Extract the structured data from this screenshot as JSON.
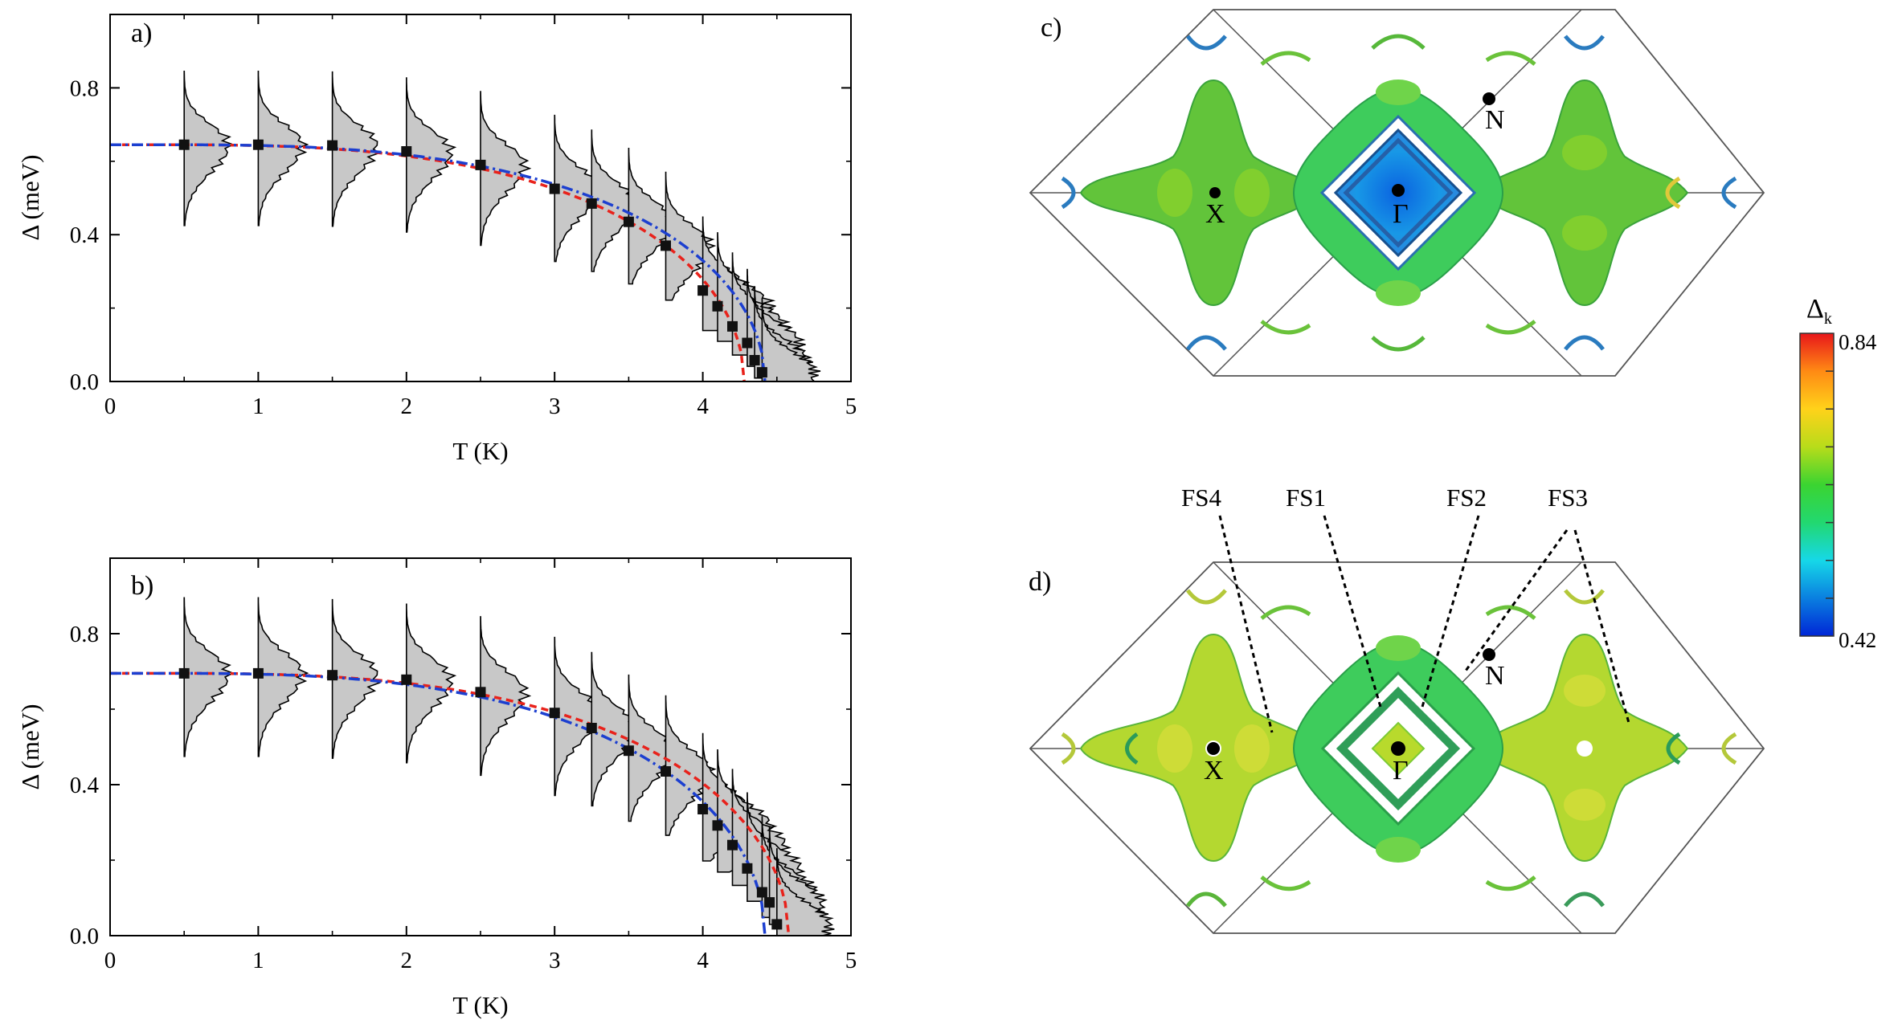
{
  "chart_data": [
    {
      "type": "scatter",
      "panel": "a)",
      "xlabel": "T (K)",
      "ylabel": "Δ (meV)",
      "xlim": [
        0,
        5
      ],
      "ylim": [
        0,
        1.0
      ],
      "xticks": [
        "0",
        "1",
        "2",
        "3",
        "4",
        "5"
      ],
      "yticks": [
        "0.0",
        "0.4",
        "0.8"
      ],
      "points": {
        "x": [
          0.5,
          1.0,
          1.5,
          2.0,
          2.5,
          3.0,
          3.25,
          3.5,
          3.75,
          4.0,
          4.1,
          4.2,
          4.3,
          4.35,
          4.4
        ],
        "y": [
          0.645,
          0.645,
          0.643,
          0.627,
          0.59,
          0.525,
          0.485,
          0.435,
          0.37,
          0.248,
          0.205,
          0.15,
          0.105,
          0.058,
          0.025
        ]
      },
      "fits": [
        {
          "name": "BCS fit (red dashed)",
          "color": "#e8221b",
          "delta0": 0.645,
          "tc": 4.28
        },
        {
          "name": "fit (blue dash-dot)",
          "color": "#1c3fd0",
          "delta0": 0.645,
          "tc": 4.42
        }
      ],
      "distributions_color": "#c8c8c8"
    },
    {
      "type": "scatter",
      "panel": "b)",
      "xlabel": "T (K)",
      "ylabel": "Δ (meV)",
      "xlim": [
        0,
        5
      ],
      "ylim": [
        0,
        1.0
      ],
      "xticks": [
        "0",
        "1",
        "2",
        "3",
        "4",
        "5"
      ],
      "yticks": [
        "0.0",
        "0.4",
        "0.8"
      ],
      "points": {
        "x": [
          0.5,
          1.0,
          1.5,
          2.0,
          2.5,
          3.0,
          3.25,
          3.5,
          3.75,
          4.0,
          4.1,
          4.2,
          4.3,
          4.4,
          4.45,
          4.5
        ],
        "y": [
          0.695,
          0.695,
          0.69,
          0.678,
          0.645,
          0.59,
          0.55,
          0.49,
          0.435,
          0.335,
          0.292,
          0.24,
          0.178,
          0.115,
          0.088,
          0.03
        ]
      },
      "fits": [
        {
          "name": "BCS fit (red dashed)",
          "color": "#e8221b",
          "delta0": 0.695,
          "tc": 4.58
        },
        {
          "name": "fit (blue dash-dot)",
          "color": "#1c3fd0",
          "delta0": 0.695,
          "tc": 4.42
        }
      ],
      "distributions_color": "#c8c8c8"
    }
  ],
  "fermi_surface": {
    "panel_c_label": "c)",
    "panel_d_label": "d)",
    "points": [
      "X",
      "Γ",
      "N"
    ],
    "fs_labels": [
      "FS4",
      "FS1",
      "FS2",
      "FS3"
    ]
  },
  "colorbar": {
    "title": "Δ",
    "subscript": "k",
    "max_label": "0.84",
    "min_label": "0.42",
    "colors": [
      "#0026d6",
      "#0a7fe0",
      "#16d8e8",
      "#22d870",
      "#3bd431",
      "#b8dc1a",
      "#ffd21a",
      "#ff8a14",
      "#e8161a"
    ]
  }
}
